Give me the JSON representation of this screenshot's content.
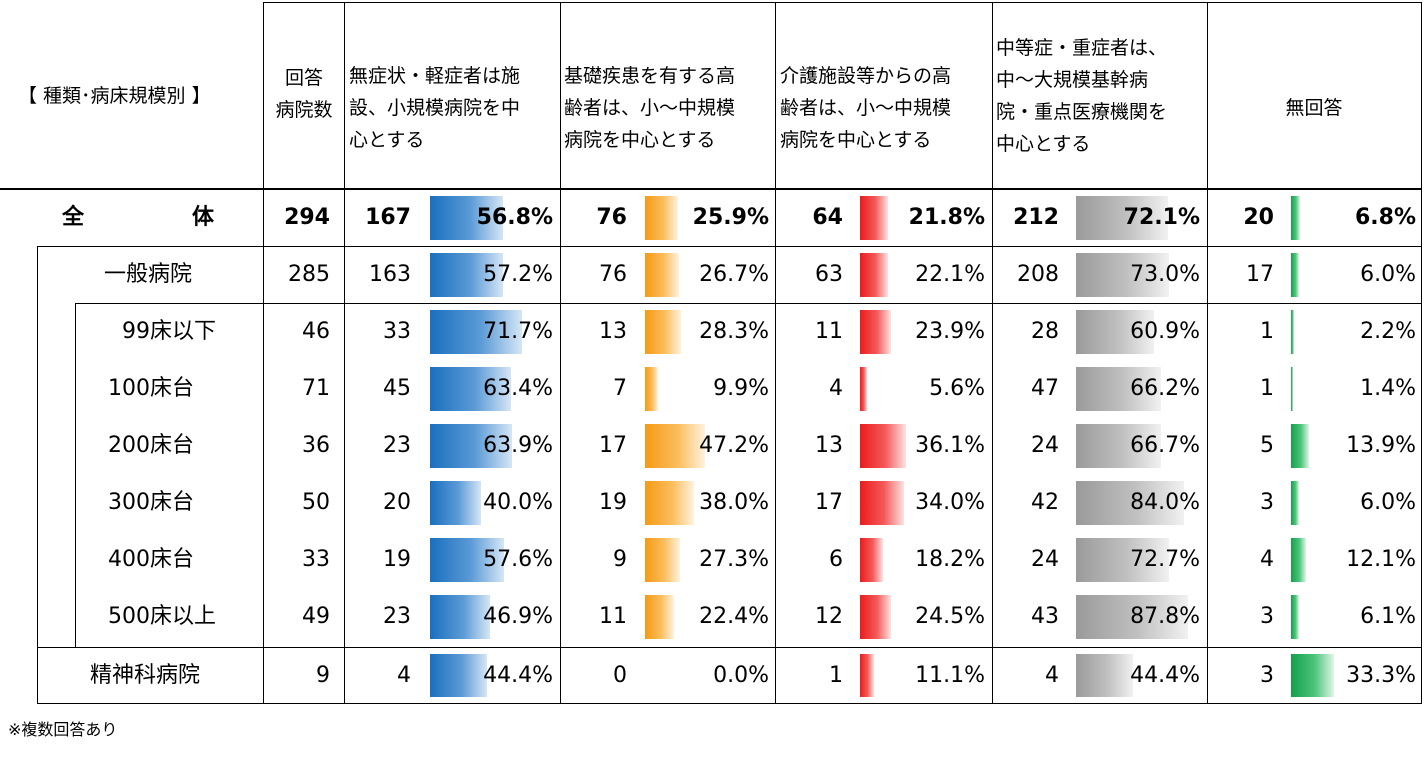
{
  "header": {
    "category": "【 種類･病床規模別 】",
    "respondents": [
      "回答",
      "病院数"
    ],
    "options": [
      [
        "無症状・軽症者は施",
        "設、小規模病院を中",
        "心とする"
      ],
      [
        "基礎疾患を有する高",
        "齢者は、小～中規模",
        "病院を中心とする"
      ],
      [
        "介護施設等からの高",
        "齢者は、小～中規模",
        "病院を中心とする"
      ],
      [
        "中等症・重症者は、",
        "中～大規模基幹病",
        "院・重点医療機関を",
        "中心とする"
      ],
      [
        "無回答"
      ]
    ]
  },
  "footnote": "※複数回答あり",
  "colors": {
    "opt1": "#1a6fbf",
    "opt2": "#f59a14",
    "opt3": "#ea1c1c",
    "opt4": "#9a9a9a",
    "opt5": "#14a04c"
  },
  "chart_data": {
    "type": "table",
    "series_names": [
      "無症状・軽症者は施設、小規模病院を中心とする",
      "基礎疾患を有する高齢者は、小～中規模病院を中心とする",
      "介護施設等からの高齢者は、小～中規模病院を中心とする",
      "中等症・重症者は、中～大規模基幹病院・重点医療機関を中心とする",
      "無回答"
    ],
    "rows": [
      {
        "label": "全　　　　体",
        "n": "294",
        "counts": [
          "167",
          "76",
          "64",
          "212",
          "20"
        ],
        "pcts": [
          "56.8%",
          "25.9%",
          "21.8%",
          "72.1%",
          "6.8%"
        ],
        "values": [
          56.8,
          25.9,
          21.8,
          72.1,
          6.8
        ]
      },
      {
        "label": "一般病院",
        "n": "285",
        "counts": [
          "163",
          "76",
          "63",
          "208",
          "17"
        ],
        "pcts": [
          "57.2%",
          "26.7%",
          "22.1%",
          "73.0%",
          "6.0%"
        ],
        "values": [
          57.2,
          26.7,
          22.1,
          73.0,
          6.0
        ]
      },
      {
        "label": "99床以下",
        "n": "46",
        "counts": [
          "33",
          "13",
          "11",
          "28",
          "1"
        ],
        "pcts": [
          "71.7%",
          "28.3%",
          "23.9%",
          "60.9%",
          "2.2%"
        ],
        "values": [
          71.7,
          28.3,
          23.9,
          60.9,
          2.2
        ]
      },
      {
        "label": "100床台",
        "n": "71",
        "counts": [
          "45",
          "7",
          "4",
          "47",
          "1"
        ],
        "pcts": [
          "63.4%",
          "9.9%",
          "5.6%",
          "66.2%",
          "1.4%"
        ],
        "values": [
          63.4,
          9.9,
          5.6,
          66.2,
          1.4
        ]
      },
      {
        "label": "200床台",
        "n": "36",
        "counts": [
          "23",
          "17",
          "13",
          "24",
          "5"
        ],
        "pcts": [
          "63.9%",
          "47.2%",
          "36.1%",
          "66.7%",
          "13.9%"
        ],
        "values": [
          63.9,
          47.2,
          36.1,
          66.7,
          13.9
        ]
      },
      {
        "label": "300床台",
        "n": "50",
        "counts": [
          "20",
          "19",
          "17",
          "42",
          "3"
        ],
        "pcts": [
          "40.0%",
          "38.0%",
          "34.0%",
          "84.0%",
          "6.0%"
        ],
        "values": [
          40.0,
          38.0,
          34.0,
          84.0,
          6.0
        ]
      },
      {
        "label": "400床台",
        "n": "33",
        "counts": [
          "19",
          "9",
          "6",
          "24",
          "4"
        ],
        "pcts": [
          "57.6%",
          "27.3%",
          "18.2%",
          "72.7%",
          "12.1%"
        ],
        "values": [
          57.6,
          27.3,
          18.2,
          72.7,
          12.1
        ]
      },
      {
        "label": "500床以上",
        "n": "49",
        "counts": [
          "23",
          "11",
          "12",
          "43",
          "3"
        ],
        "pcts": [
          "46.9%",
          "22.4%",
          "24.5%",
          "87.8%",
          "6.1%"
        ],
        "values": [
          46.9,
          22.4,
          24.5,
          87.8,
          6.1
        ]
      },
      {
        "label": "精神科病院",
        "n": "9",
        "counts": [
          "4",
          "0",
          "1",
          "4",
          "3"
        ],
        "pcts": [
          "44.4%",
          "0.0%",
          "11.1%",
          "44.4%",
          "33.3%"
        ],
        "values": [
          44.4,
          0.0,
          11.1,
          44.4,
          33.3
        ]
      }
    ]
  }
}
